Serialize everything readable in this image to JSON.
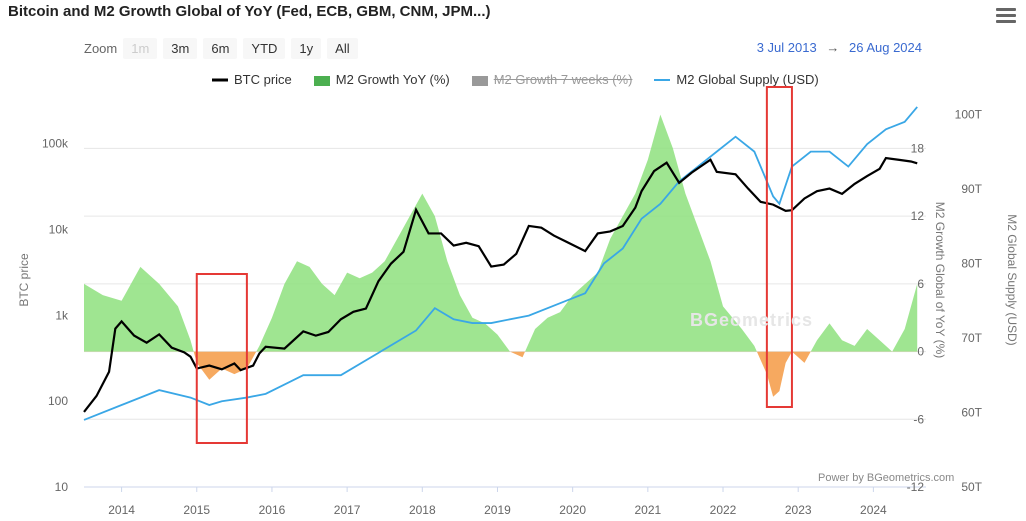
{
  "header": {
    "title": "Bitcoin and M2 Growth Global of YoY (Fed, ECB, GBM, CNM, JPM...)",
    "menu_icon": "hamburger-menu-icon"
  },
  "zoom": {
    "label": "Zoom",
    "buttons": [
      "1m",
      "3m",
      "6m",
      "YTD",
      "1y",
      "All"
    ],
    "disabled": [
      "1m"
    ]
  },
  "range": {
    "from": "3 Jul 2013",
    "arrow": "→",
    "to": "26 Aug 2024"
  },
  "legend": {
    "items": [
      {
        "label": "BTC price",
        "color": "#000000",
        "symbol": "line",
        "hidden": false
      },
      {
        "label": "M2 Growth YoY (%)",
        "color": "#4caf50",
        "symbol": "area",
        "hidden": false
      },
      {
        "label": "M2 Growth 7 weeks (%)",
        "color": "#888888",
        "symbol": "area",
        "hidden": true
      },
      {
        "label": "M2 Global Supply (USD)",
        "color": "#3aa7e6",
        "symbol": "line",
        "hidden": false
      }
    ]
  },
  "credit": "Power by BGeometrics.com",
  "watermark": "BGeometrics",
  "chart_data": {
    "type": "line",
    "x_axis": {
      "type": "datetime",
      "ticks": [
        "2014",
        "2015",
        "2016",
        "2017",
        "2018",
        "2019",
        "2020",
        "2021",
        "2022",
        "2023",
        "2024"
      ]
    },
    "axes": {
      "btc": {
        "title": "BTC price",
        "scale": "log",
        "ticks": [
          "10",
          "100",
          "1k",
          "10k",
          "100k"
        ],
        "range": [
          10,
          400000
        ]
      },
      "m2_growth": {
        "title": "M2 Growth Global of YoY (%)",
        "ticks": [
          "-12",
          "-6",
          "0",
          "6",
          "12",
          "18"
        ],
        "range": [
          -12,
          23
        ]
      },
      "m2_supply": {
        "title": "M2 Global Supply (USD)",
        "ticks": [
          "50T",
          "60T",
          "70T",
          "80T",
          "90T",
          "100T"
        ],
        "range": [
          50,
          103
        ]
      }
    },
    "series": [
      {
        "name": "BTC price",
        "axis": "btc",
        "color": "#000000",
        "points": [
          [
            "2013-07",
            75
          ],
          [
            "2013-09",
            115
          ],
          [
            "2013-11",
            220
          ],
          [
            "2013-12",
            700
          ],
          [
            "2014-01",
            850
          ],
          [
            "2014-03",
            580
          ],
          [
            "2014-05",
            480
          ],
          [
            "2014-07",
            600
          ],
          [
            "2014-09",
            420
          ],
          [
            "2014-11",
            370
          ],
          [
            "2014-12",
            330
          ],
          [
            "2015-01",
            240
          ],
          [
            "2015-03",
            260
          ],
          [
            "2015-05",
            235
          ],
          [
            "2015-07",
            275
          ],
          [
            "2015-08",
            230
          ],
          [
            "2015-10",
            260
          ],
          [
            "2015-11",
            360
          ],
          [
            "2015-12",
            430
          ],
          [
            "2016-03",
            410
          ],
          [
            "2016-06",
            650
          ],
          [
            "2016-08",
            580
          ],
          [
            "2016-10",
            640
          ],
          [
            "2016-12",
            900
          ],
          [
            "2017-02",
            1100
          ],
          [
            "2017-04",
            1200
          ],
          [
            "2017-06",
            2500
          ],
          [
            "2017-08",
            4000
          ],
          [
            "2017-10",
            5500
          ],
          [
            "2017-12",
            17000
          ],
          [
            "2018-02",
            9000
          ],
          [
            "2018-04",
            9000
          ],
          [
            "2018-06",
            6500
          ],
          [
            "2018-08",
            7000
          ],
          [
            "2018-10",
            6400
          ],
          [
            "2018-12",
            3700
          ],
          [
            "2019-02",
            3900
          ],
          [
            "2019-04",
            5200
          ],
          [
            "2019-06",
            11000
          ],
          [
            "2019-08",
            10500
          ],
          [
            "2019-10",
            8500
          ],
          [
            "2019-12",
            7200
          ],
          [
            "2020-03",
            5600
          ],
          [
            "2020-05",
            9000
          ],
          [
            "2020-07",
            9500
          ],
          [
            "2020-09",
            11000
          ],
          [
            "2020-11",
            18000
          ],
          [
            "2020-12",
            28000
          ],
          [
            "2021-02",
            48000
          ],
          [
            "2021-04",
            60000
          ],
          [
            "2021-06",
            35000
          ],
          [
            "2021-08",
            46000
          ],
          [
            "2021-10",
            58000
          ],
          [
            "2021-11",
            65000
          ],
          [
            "2021-12",
            47000
          ],
          [
            "2022-03",
            44000
          ],
          [
            "2022-05",
            30000
          ],
          [
            "2022-07",
            21000
          ],
          [
            "2022-09",
            19500
          ],
          [
            "2022-11",
            16500
          ],
          [
            "2022-12",
            16800
          ],
          [
            "2023-02",
            23000
          ],
          [
            "2023-04",
            28000
          ],
          [
            "2023-06",
            30000
          ],
          [
            "2023-08",
            26000
          ],
          [
            "2023-10",
            34000
          ],
          [
            "2023-12",
            42000
          ],
          [
            "2024-02",
            51000
          ],
          [
            "2024-03",
            68000
          ],
          [
            "2024-05",
            65000
          ],
          [
            "2024-07",
            62000
          ],
          [
            "2024-08",
            59000
          ]
        ]
      },
      {
        "name": "M2 Growth YoY (%)",
        "axis": "m2_growth",
        "color": "#4caf50",
        "points": [
          [
            "2013-07",
            6
          ],
          [
            "2013-10",
            5
          ],
          [
            "2014-01",
            4.5
          ],
          [
            "2014-04",
            7.5
          ],
          [
            "2014-07",
            6
          ],
          [
            "2014-10",
            4
          ],
          [
            "2014-12",
            1
          ],
          [
            "2015-01",
            -1
          ],
          [
            "2015-03",
            -2.5
          ],
          [
            "2015-05",
            -1.5
          ],
          [
            "2015-07",
            -2
          ],
          [
            "2015-09",
            -1.5
          ],
          [
            "2015-11",
            0.5
          ],
          [
            "2016-01",
            3
          ],
          [
            "2016-03",
            6
          ],
          [
            "2016-05",
            8
          ],
          [
            "2016-07",
            7.5
          ],
          [
            "2016-09",
            6
          ],
          [
            "2016-11",
            5
          ],
          [
            "2017-01",
            7
          ],
          [
            "2017-03",
            6.5
          ],
          [
            "2017-05",
            7
          ],
          [
            "2017-07",
            8
          ],
          [
            "2017-09",
            10
          ],
          [
            "2017-11",
            12
          ],
          [
            "2018-01",
            14
          ],
          [
            "2018-03",
            12
          ],
          [
            "2018-05",
            8
          ],
          [
            "2018-07",
            5
          ],
          [
            "2018-09",
            3
          ],
          [
            "2018-11",
            2.5
          ],
          [
            "2019-01",
            1.5
          ],
          [
            "2019-03",
            0
          ],
          [
            "2019-05",
            -0.5
          ],
          [
            "2019-07",
            2
          ],
          [
            "2019-09",
            3
          ],
          [
            "2019-11",
            3.5
          ],
          [
            "2020-01",
            5
          ],
          [
            "2020-03",
            6
          ],
          [
            "2020-05",
            7
          ],
          [
            "2020-07",
            10
          ],
          [
            "2020-09",
            12
          ],
          [
            "2020-11",
            14
          ],
          [
            "2021-01",
            17
          ],
          [
            "2021-03",
            21
          ],
          [
            "2021-05",
            18
          ],
          [
            "2021-07",
            14
          ],
          [
            "2021-09",
            11
          ],
          [
            "2021-11",
            8
          ],
          [
            "2022-01",
            4
          ],
          [
            "2022-04",
            2
          ],
          [
            "2022-06",
            0.5
          ],
          [
            "2022-08",
            -2
          ],
          [
            "2022-09",
            -4
          ],
          [
            "2022-10",
            -3.5
          ],
          [
            "2022-11",
            -1
          ],
          [
            "2022-12",
            0
          ],
          [
            "2023-02",
            -1
          ],
          [
            "2023-04",
            1
          ],
          [
            "2023-06",
            2.5
          ],
          [
            "2023-08",
            1
          ],
          [
            "2023-10",
            0.5
          ],
          [
            "2023-12",
            2
          ],
          [
            "2024-02",
            1
          ],
          [
            "2024-04",
            0
          ],
          [
            "2024-06",
            2
          ],
          [
            "2024-08",
            6
          ]
        ]
      },
      {
        "name": "M2 Global Supply (USD)",
        "axis": "m2_supply",
        "color": "#3aa7e6",
        "points": [
          [
            "2013-07",
            59
          ],
          [
            "2014-01",
            61
          ],
          [
            "2014-07",
            63
          ],
          [
            "2014-12",
            62
          ],
          [
            "2015-03",
            61
          ],
          [
            "2015-05",
            61.5
          ],
          [
            "2015-09",
            62
          ],
          [
            "2015-12",
            62.5
          ],
          [
            "2016-06",
            65
          ],
          [
            "2016-12",
            65
          ],
          [
            "2017-06",
            68
          ],
          [
            "2017-12",
            71
          ],
          [
            "2018-03",
            74
          ],
          [
            "2018-06",
            72.5
          ],
          [
            "2018-09",
            72
          ],
          [
            "2018-12",
            72
          ],
          [
            "2019-06",
            73
          ],
          [
            "2019-12",
            75
          ],
          [
            "2020-03",
            76
          ],
          [
            "2020-06",
            80
          ],
          [
            "2020-09",
            82
          ],
          [
            "2020-12",
            86
          ],
          [
            "2021-03",
            88
          ],
          [
            "2021-06",
            91
          ],
          [
            "2021-09",
            93
          ],
          [
            "2021-12",
            95
          ],
          [
            "2022-03",
            97
          ],
          [
            "2022-06",
            95
          ],
          [
            "2022-09",
            89
          ],
          [
            "2022-10",
            88
          ],
          [
            "2022-12",
            93
          ],
          [
            "2023-03",
            95
          ],
          [
            "2023-06",
            95
          ],
          [
            "2023-09",
            93
          ],
          [
            "2023-12",
            96
          ],
          [
            "2024-03",
            98
          ],
          [
            "2024-06",
            99
          ],
          [
            "2024-08",
            101
          ]
        ]
      }
    ],
    "annotations": [
      {
        "type": "box",
        "color": "#e53935",
        "x_from": "2015-01",
        "x_to": "2015-09"
      },
      {
        "type": "box",
        "color": "#e53935",
        "x_from": "2022-08",
        "x_to": "2022-12"
      }
    ]
  }
}
